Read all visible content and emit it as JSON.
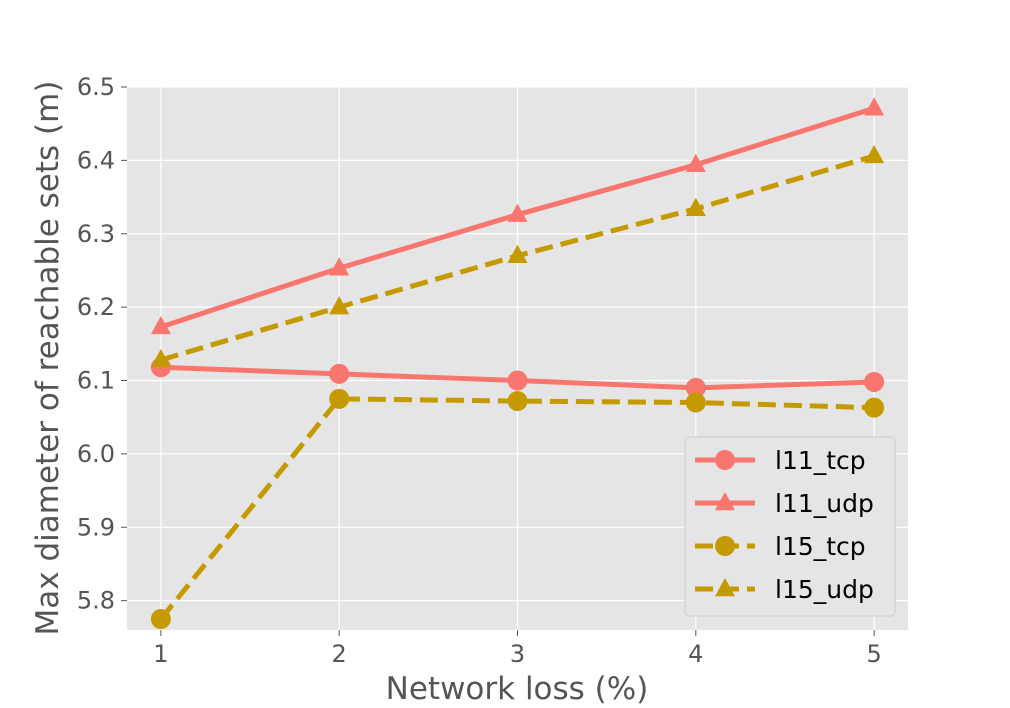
{
  "chart_data": {
    "type": "line",
    "title": "",
    "xlabel": "Network loss (%)",
    "ylabel": "Max diameter of reachable sets (m)",
    "x": [
      1,
      2,
      3,
      4,
      5
    ],
    "x_ticks": [
      "1",
      "2",
      "3",
      "4",
      "5"
    ],
    "y_ticks": [
      "5.8",
      "5.9",
      "6.0",
      "6.1",
      "6.2",
      "6.3",
      "6.4",
      "6.5"
    ],
    "xlim": [
      0.81,
      5.19
    ],
    "ylim": [
      5.76,
      6.5
    ],
    "grid": true,
    "legend_position": "lower-right",
    "series": [
      {
        "name": "l11_tcp",
        "values": [
          6.118,
          6.109,
          6.1,
          6.09,
          6.098
        ],
        "color": "#f8766d",
        "linestyle": "solid",
        "marker": "circle"
      },
      {
        "name": "l11_udp",
        "values": [
          6.173,
          6.253,
          6.326,
          6.394,
          6.471
        ],
        "color": "#f8766d",
        "linestyle": "solid",
        "marker": "triangle"
      },
      {
        "name": "l15_tcp",
        "values": [
          5.775,
          6.075,
          6.072,
          6.07,
          6.063
        ],
        "color": "#c49a00",
        "linestyle": "dashed",
        "marker": "circle"
      },
      {
        "name": "l15_udp",
        "values": [
          6.128,
          6.2,
          6.27,
          6.334,
          6.406
        ],
        "color": "#c49a00",
        "linestyle": "dashed",
        "marker": "triangle"
      }
    ]
  }
}
